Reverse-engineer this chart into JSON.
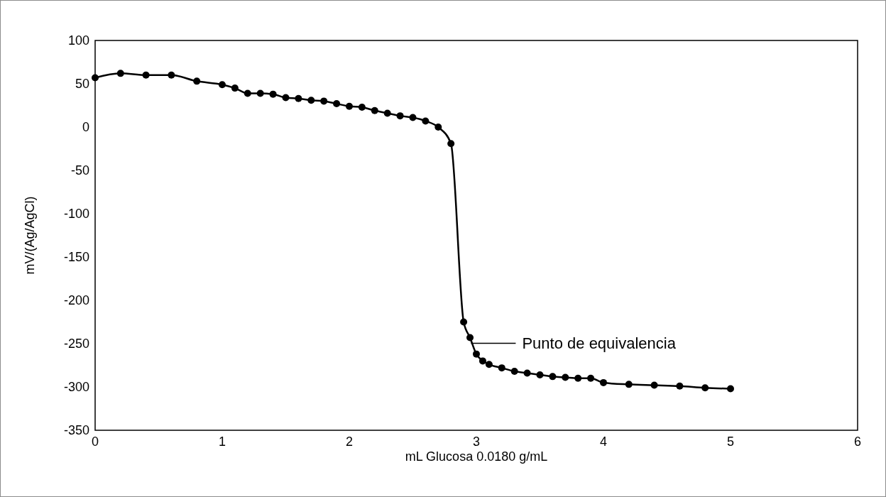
{
  "chart_data": {
    "type": "line",
    "xlabel": "mL Glucosa 0.0180 g/mL",
    "ylabel": "mV/(Ag/AgCl)",
    "x": [
      0,
      0.2,
      0.4,
      0.6,
      0.8,
      1.0,
      1.1,
      1.2,
      1.3,
      1.4,
      1.5,
      1.6,
      1.7,
      1.8,
      1.9,
      2.0,
      2.1,
      2.2,
      2.3,
      2.4,
      2.5,
      2.6,
      2.7,
      2.8,
      2.9,
      2.95,
      3.0,
      3.05,
      3.1,
      3.2,
      3.3,
      3.4,
      3.5,
      3.6,
      3.7,
      3.8,
      3.9,
      4.0,
      4.2,
      4.4,
      4.6,
      4.8,
      5.0
    ],
    "series": [
      {
        "color": "#000000",
        "values": [
          57,
          62,
          60,
          60,
          53,
          49,
          45,
          39,
          39,
          38,
          34,
          33,
          31,
          30,
          27,
          24,
          23,
          19,
          16,
          13,
          11,
          7,
          0,
          -19,
          -225,
          -243,
          -262,
          -270,
          -274,
          -278,
          -282,
          -284,
          -286,
          -288,
          -289,
          -290,
          -290,
          -295,
          -297,
          -298,
          -299,
          -301,
          -302
        ]
      }
    ],
    "xlim": [
      0,
      6
    ],
    "xticks": [
      0,
      1,
      2,
      3,
      4,
      5,
      6
    ],
    "ylim": [
      -350,
      100
    ],
    "yticks": [
      -350,
      -300,
      -250,
      -200,
      -150,
      -100,
      -50,
      0,
      50,
      100
    ],
    "marker": "circle",
    "line_style": "solid",
    "grid": false,
    "annotations": [
      "Punto de equivalencia"
    ]
  }
}
